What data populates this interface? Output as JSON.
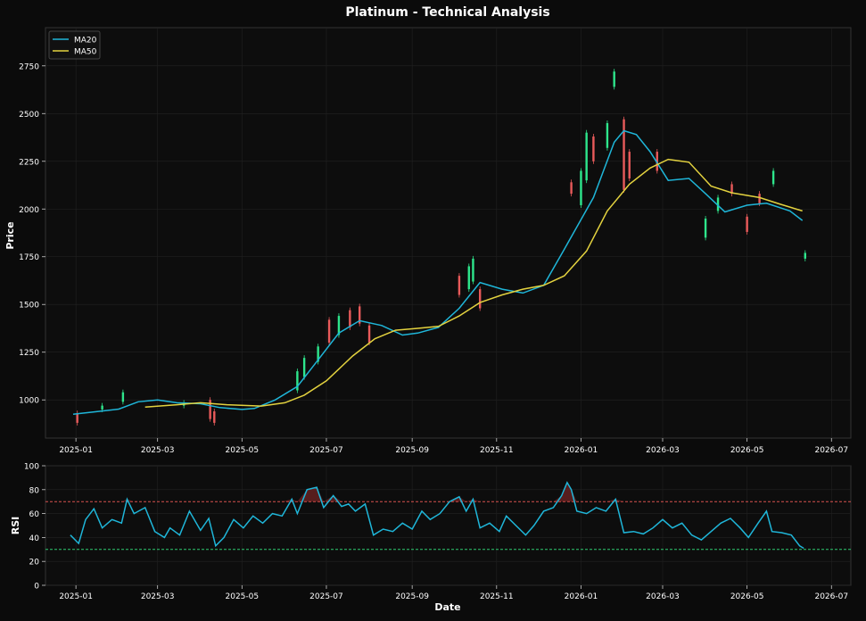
{
  "chart_data": [
    {
      "type": "candlestick",
      "title": "Platinum - Technical Analysis",
      "ylabel": "Price",
      "xlabel": "",
      "ylim": [
        800,
        2950
      ],
      "xlim": [
        "2024-12-10",
        "2026-07-15"
      ],
      "yticks": [
        1000,
        1250,
        1500,
        1750,
        2000,
        2250,
        2500,
        2750
      ],
      "xticks": [
        "2025-01",
        "2025-03",
        "2025-05",
        "2025-07",
        "2025-09",
        "2025-11",
        "2026-01",
        "2026-03",
        "2026-05",
        "2026-07"
      ],
      "grid": true,
      "legend_position": "top-left",
      "series": [
        {
          "name": "MA20",
          "color": "#1fb6d9",
          "points": [
            [
              "2024-12-30",
              925
            ],
            [
              "2025-01-15",
              938
            ],
            [
              "2025-02-01",
              952
            ],
            [
              "2025-02-15",
              990
            ],
            [
              "2025-03-01",
              1000
            ],
            [
              "2025-03-15",
              985
            ],
            [
              "2025-04-01",
              980
            ],
            [
              "2025-04-15",
              960
            ],
            [
              "2025-05-01",
              950
            ],
            [
              "2025-05-10",
              955
            ],
            [
              "2025-05-25",
              1000
            ],
            [
              "2025-06-10",
              1070
            ],
            [
              "2025-06-25",
              1210
            ],
            [
              "2025-07-10",
              1350
            ],
            [
              "2025-07-25",
              1415
            ],
            [
              "2025-08-10",
              1390
            ],
            [
              "2025-08-25",
              1340
            ],
            [
              "2025-09-05",
              1350
            ],
            [
              "2025-09-20",
              1380
            ],
            [
              "2025-10-05",
              1480
            ],
            [
              "2025-10-20",
              1615
            ],
            [
              "2025-11-05",
              1580
            ],
            [
              "2025-11-20",
              1560
            ],
            [
              "2025-12-05",
              1600
            ],
            [
              "2025-12-20",
              1790
            ],
            [
              "2026-01-10",
              2060
            ],
            [
              "2026-01-25",
              2350
            ],
            [
              "2026-02-01",
              2410
            ],
            [
              "2026-02-10",
              2390
            ],
            [
              "2026-02-20",
              2300
            ],
            [
              "2026-03-05",
              2150
            ],
            [
              "2026-03-20",
              2160
            ],
            [
              "2026-04-01",
              2080
            ],
            [
              "2026-04-15",
              1985
            ],
            [
              "2026-05-01",
              2020
            ],
            [
              "2026-05-15",
              2030
            ],
            [
              "2026-06-01",
              1990
            ],
            [
              "2026-06-10",
              1940
            ]
          ]
        },
        {
          "name": "MA50",
          "color": "#e3d23f",
          "points": [
            [
              "2025-02-20",
              962
            ],
            [
              "2025-03-15",
              975
            ],
            [
              "2025-04-01",
              985
            ],
            [
              "2025-04-20",
              975
            ],
            [
              "2025-05-15",
              968
            ],
            [
              "2025-06-01",
              985
            ],
            [
              "2025-06-15",
              1025
            ],
            [
              "2025-07-01",
              1100
            ],
            [
              "2025-07-20",
              1230
            ],
            [
              "2025-08-05",
              1320
            ],
            [
              "2025-08-20",
              1365
            ],
            [
              "2025-09-05",
              1375
            ],
            [
              "2025-09-20",
              1385
            ],
            [
              "2025-10-05",
              1440
            ],
            [
              "2025-10-20",
              1510
            ],
            [
              "2025-11-05",
              1550
            ],
            [
              "2025-11-20",
              1580
            ],
            [
              "2025-12-05",
              1600
            ],
            [
              "2025-12-20",
              1650
            ],
            [
              "2026-01-05",
              1780
            ],
            [
              "2026-01-20",
              1990
            ],
            [
              "2026-02-05",
              2130
            ],
            [
              "2026-02-20",
              2215
            ],
            [
              "2026-03-05",
              2260
            ],
            [
              "2026-03-20",
              2245
            ],
            [
              "2026-04-05",
              2120
            ],
            [
              "2026-04-20",
              2085
            ],
            [
              "2026-05-10",
              2060
            ],
            [
              "2026-05-25",
              2025
            ],
            [
              "2026-06-10",
              1990
            ]
          ]
        }
      ],
      "candles": [
        [
          "2025-01-02",
          880,
          930,
          "down"
        ],
        [
          "2025-01-20",
          950,
          970,
          "up"
        ],
        [
          "2025-02-04",
          990,
          1040,
          "up"
        ],
        [
          "2025-03-20",
          970,
          985,
          "up"
        ],
        [
          "2025-04-08",
          900,
          1000,
          "down"
        ],
        [
          "2025-04-11",
          880,
          940,
          "down"
        ],
        [
          "2025-06-10",
          1050,
          1150,
          "up"
        ],
        [
          "2025-06-15",
          1120,
          1220,
          "up"
        ],
        [
          "2025-06-25",
          1200,
          1280,
          "up"
        ],
        [
          "2025-07-03",
          1300,
          1420,
          "down"
        ],
        [
          "2025-07-10",
          1340,
          1440,
          "up"
        ],
        [
          "2025-07-18",
          1380,
          1470,
          "down"
        ],
        [
          "2025-07-25",
          1400,
          1490,
          "down"
        ],
        [
          "2025-08-01",
          1300,
          1390,
          "down"
        ],
        [
          "2025-10-05",
          1550,
          1650,
          "down"
        ],
        [
          "2025-10-12",
          1580,
          1700,
          "up"
        ],
        [
          "2025-10-15",
          1620,
          1740,
          "up"
        ],
        [
          "2025-10-20",
          1480,
          1580,
          "down"
        ],
        [
          "2025-12-25",
          2080,
          2140,
          "down"
        ],
        [
          "2026-01-01",
          2020,
          2200,
          "up"
        ],
        [
          "2026-01-05",
          2150,
          2400,
          "up"
        ],
        [
          "2026-01-10",
          2250,
          2380,
          "down"
        ],
        [
          "2026-01-20",
          2320,
          2450,
          "up"
        ],
        [
          "2026-01-25",
          2640,
          2720,
          "up"
        ],
        [
          "2026-02-01",
          2100,
          2470,
          "down"
        ],
        [
          "2026-02-05",
          2160,
          2300,
          "down"
        ],
        [
          "2026-02-25",
          2200,
          2300,
          "down"
        ],
        [
          "2026-04-01",
          1850,
          1950,
          "up"
        ],
        [
          "2026-04-10",
          1990,
          2060,
          "up"
        ],
        [
          "2026-04-20",
          2080,
          2130,
          "down"
        ],
        [
          "2026-05-01",
          1880,
          1960,
          "down"
        ],
        [
          "2026-05-10",
          2030,
          2080,
          "down"
        ],
        [
          "2026-05-20",
          2130,
          2200,
          "up"
        ],
        [
          "2026-06-12",
          1740,
          1770,
          "up"
        ]
      ]
    },
    {
      "type": "line",
      "title": "",
      "ylabel": "RSI",
      "xlabel": "Date",
      "ylim": [
        0,
        100
      ],
      "xlim": [
        "2024-12-10",
        "2026-07-15"
      ],
      "yticks": [
        0,
        20,
        40,
        60,
        80,
        100
      ],
      "xticks": [
        "2025-01",
        "2025-03",
        "2025-05",
        "2025-07",
        "2025-09",
        "2025-11",
        "2026-01",
        "2026-03",
        "2026-05",
        "2026-07"
      ],
      "grid": true,
      "overbought": 70,
      "oversold": 30,
      "series": [
        {
          "name": "RSI",
          "color": "#1fb6d9",
          "points": [
            [
              "2024-12-28",
              42
            ],
            [
              "2025-01-03",
              35
            ],
            [
              "2025-01-08",
              55
            ],
            [
              "2025-01-14",
              64
            ],
            [
              "2025-01-20",
              48
            ],
            [
              "2025-01-27",
              55
            ],
            [
              "2025-02-03",
              52
            ],
            [
              "2025-02-07",
              72
            ],
            [
              "2025-02-12",
              60
            ],
            [
              "2025-02-20",
              65
            ],
            [
              "2025-02-27",
              45
            ],
            [
              "2025-03-06",
              40
            ],
            [
              "2025-03-10",
              48
            ],
            [
              "2025-03-17",
              42
            ],
            [
              "2025-03-24",
              62
            ],
            [
              "2025-04-01",
              46
            ],
            [
              "2025-04-07",
              56
            ],
            [
              "2025-04-12",
              33
            ],
            [
              "2025-04-18",
              40
            ],
            [
              "2025-04-25",
              55
            ],
            [
              "2025-05-02",
              48
            ],
            [
              "2025-05-09",
              58
            ],
            [
              "2025-05-16",
              52
            ],
            [
              "2025-05-23",
              60
            ],
            [
              "2025-05-30",
              58
            ],
            [
              "2025-06-06",
              72
            ],
            [
              "2025-06-10",
              60
            ],
            [
              "2025-06-17",
              80
            ],
            [
              "2025-06-24",
              82
            ],
            [
              "2025-06-29",
              65
            ],
            [
              "2025-07-06",
              75
            ],
            [
              "2025-07-12",
              66
            ],
            [
              "2025-07-17",
              68
            ],
            [
              "2025-07-22",
              62
            ],
            [
              "2025-07-29",
              68
            ],
            [
              "2025-08-04",
              42
            ],
            [
              "2025-08-11",
              47
            ],
            [
              "2025-08-18",
              45
            ],
            [
              "2025-08-25",
              52
            ],
            [
              "2025-09-01",
              47
            ],
            [
              "2025-09-08",
              62
            ],
            [
              "2025-09-14",
              55
            ],
            [
              "2025-09-21",
              60
            ],
            [
              "2025-09-28",
              70
            ],
            [
              "2025-10-05",
              74
            ],
            [
              "2025-10-10",
              62
            ],
            [
              "2025-10-15",
              72
            ],
            [
              "2025-10-20",
              48
            ],
            [
              "2025-10-27",
              52
            ],
            [
              "2025-11-03",
              45
            ],
            [
              "2025-11-08",
              58
            ],
            [
              "2025-11-15",
              50
            ],
            [
              "2025-11-22",
              42
            ],
            [
              "2025-11-28",
              50
            ],
            [
              "2025-12-05",
              62
            ],
            [
              "2025-12-12",
              65
            ],
            [
              "2025-12-18",
              75
            ],
            [
              "2025-12-22",
              86
            ],
            [
              "2025-12-25",
              80
            ],
            [
              "2025-12-29",
              62
            ],
            [
              "2026-01-05",
              60
            ],
            [
              "2026-01-12",
              65
            ],
            [
              "2026-01-19",
              62
            ],
            [
              "2026-01-26",
              72
            ],
            [
              "2026-02-01",
              44
            ],
            [
              "2026-02-08",
              45
            ],
            [
              "2026-02-15",
              43
            ],
            [
              "2026-02-22",
              48
            ],
            [
              "2026-03-01",
              55
            ],
            [
              "2026-03-08",
              48
            ],
            [
              "2026-03-15",
              52
            ],
            [
              "2026-03-22",
              42
            ],
            [
              "2026-03-29",
              38
            ],
            [
              "2026-04-05",
              45
            ],
            [
              "2026-04-12",
              52
            ],
            [
              "2026-04-19",
              56
            ],
            [
              "2026-04-26",
              48
            ],
            [
              "2026-05-02",
              40
            ],
            [
              "2026-05-09",
              52
            ],
            [
              "2026-05-15",
              62
            ],
            [
              "2026-05-19",
              45
            ],
            [
              "2026-05-26",
              44
            ],
            [
              "2026-06-02",
              42
            ],
            [
              "2026-06-08",
              33
            ],
            [
              "2026-06-11",
              31
            ]
          ]
        }
      ]
    }
  ],
  "colors": {
    "background": "#0b0b0b",
    "panel": "#0d0d0d",
    "up": "#2ee68c",
    "down": "#e85a5a",
    "overbought_line": "#d9534f",
    "oversold_line": "#2ecc71",
    "text": "#ffffff"
  }
}
